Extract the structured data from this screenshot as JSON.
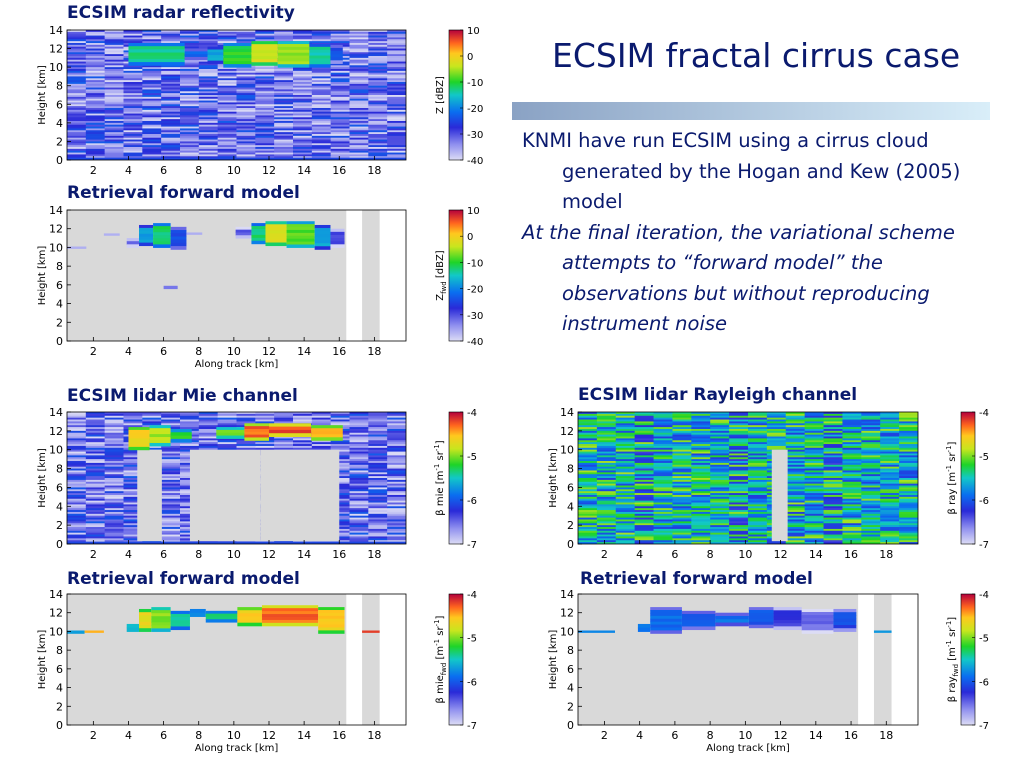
{
  "slide": {
    "title": "ECSIM fractal cirrus case",
    "bullets": [
      "KNMI have run ECSIM using a cirrus cloud generated by the Hogan and Kew (2005) model",
      "At the final iteration, the variational scheme attempts to “forward model” the observations but without reproducing instrument noise"
    ]
  },
  "colors": {
    "text_navy": "#0a1a6e",
    "missing_gray": "#d9d9d9",
    "rule_start": "#8aa2c4",
    "rule_end": "#d9eef9"
  },
  "chart_data": [
    {
      "type": "heatmap",
      "title": "ECSIM radar reflectivity",
      "xlabel": "",
      "ylabel": "Height [km]",
      "xlim": [
        0.5,
        19.8
      ],
      "ylim": [
        0,
        14
      ],
      "xticks": [
        2,
        4,
        6,
        8,
        10,
        12,
        14,
        16,
        18
      ],
      "yticks": [
        0,
        2,
        4,
        6,
        8,
        10,
        12,
        14
      ],
      "colorbar": {
        "label": "Z [dBZ]",
        "range": [
          -40,
          10
        ],
        "ticks": [
          10,
          0,
          -10,
          -20,
          -30,
          -40
        ]
      },
      "background": "noise",
      "cloud": [
        {
          "x": [
            4.0,
            7.2
          ],
          "y": [
            10.2,
            12.6
          ],
          "value": -13
        },
        {
          "x": [
            7.2,
            8.5
          ],
          "y": [
            10.8,
            12.0
          ],
          "value": -22
        },
        {
          "x": [
            8.5,
            9.4
          ],
          "y": [
            10.4,
            12.2
          ],
          "value": -18
        },
        {
          "x": [
            9.4,
            11.0
          ],
          "y": [
            10.0,
            12.6
          ],
          "value": -10
        },
        {
          "x": [
            11.0,
            12.5
          ],
          "y": [
            10.2,
            12.8
          ],
          "value": -3
        },
        {
          "x": [
            12.5,
            14.3
          ],
          "y": [
            10.0,
            12.8
          ],
          "value": -6
        },
        {
          "x": [
            14.3,
            15.5
          ],
          "y": [
            10.0,
            12.5
          ],
          "value": -14
        },
        {
          "x": [
            15.5,
            16.2
          ],
          "y": [
            10.4,
            12.4
          ],
          "value": -24
        }
      ]
    },
    {
      "type": "heatmap",
      "title": "Retrieval forward model",
      "xlabel": "Along track [km]",
      "ylabel": "Height [km]",
      "xlim": [
        0.5,
        19.8
      ],
      "ylim": [
        0,
        14
      ],
      "xticks": [
        2,
        4,
        6,
        8,
        10,
        12,
        14,
        16,
        18
      ],
      "yticks": [
        0,
        2,
        4,
        6,
        8,
        10,
        12,
        14
      ],
      "colorbar": {
        "label": "Z",
        "label_sub": "fwd",
        "label_unit": " [dBZ]",
        "range": [
          -40,
          10
        ],
        "ticks": [
          10,
          0,
          -10,
          -20,
          -30,
          -40
        ]
      },
      "background": "gray",
      "missing": [
        [
          16.4,
          17.3
        ],
        [
          18.3,
          19.8
        ]
      ],
      "cloud": [
        {
          "x": [
            0.5,
            1.6
          ],
          "y": [
            9.9,
            10.1
          ],
          "value": -35
        },
        {
          "x": [
            2.6,
            3.5
          ],
          "y": [
            11.3,
            11.5
          ],
          "value": -36
        },
        {
          "x": [
            3.9,
            4.6
          ],
          "y": [
            10.0,
            11.0
          ],
          "value": -30
        },
        {
          "x": [
            4.6,
            5.4
          ],
          "y": [
            10.2,
            12.4
          ],
          "value": -18
        },
        {
          "x": [
            5.4,
            6.4
          ],
          "y": [
            10.0,
            12.6
          ],
          "value": -12
        },
        {
          "x": [
            6.4,
            7.3
          ],
          "y": [
            9.8,
            12.2
          ],
          "value": -24
        },
        {
          "x": [
            7.3,
            8.2
          ],
          "y": [
            11.4,
            11.6
          ],
          "value": -36
        },
        {
          "x": [
            6.0,
            6.8
          ],
          "y": [
            5.6,
            5.9
          ],
          "value": -32
        },
        {
          "x": [
            10.1,
            11.0
          ],
          "y": [
            11.0,
            12.2
          ],
          "value": -30
        },
        {
          "x": [
            11.0,
            11.8
          ],
          "y": [
            10.4,
            12.6
          ],
          "value": -12
        },
        {
          "x": [
            11.8,
            13.0
          ],
          "y": [
            10.2,
            12.8
          ],
          "value": -3
        },
        {
          "x": [
            13.0,
            14.6
          ],
          "y": [
            10.0,
            12.8
          ],
          "value": -8
        },
        {
          "x": [
            14.6,
            15.5
          ],
          "y": [
            9.8,
            12.4
          ],
          "value": -18
        },
        {
          "x": [
            15.5,
            16.3
          ],
          "y": [
            10.0,
            12.0
          ],
          "value": -30
        }
      ]
    },
    {
      "type": "heatmap",
      "title": "ECSIM lidar Mie channel",
      "xlabel": "",
      "ylabel": "Height [km]",
      "xlim": [
        0.5,
        19.8
      ],
      "ylim": [
        0,
        14
      ],
      "xticks": [
        2,
        4,
        6,
        8,
        10,
        12,
        14,
        16,
        18
      ],
      "yticks": [
        0,
        2,
        4,
        6,
        8,
        10,
        12,
        14
      ],
      "colorbar": {
        "label": "β mie [m",
        "label_unit": " sr",
        "range": [
          -7,
          -4
        ],
        "ticks": [
          -4,
          -5,
          -6,
          -7
        ]
      },
      "background": "noise",
      "attenuated": [
        [
          4.5,
          5.9
        ],
        [
          7.5,
          11.5
        ],
        [
          11.5,
          16.0
        ]
      ],
      "cloud": [
        {
          "x": [
            4.0,
            5.2
          ],
          "y": [
            10.0,
            12.4
          ],
          "value": -4.6
        },
        {
          "x": [
            5.2,
            6.4
          ],
          "y": [
            10.4,
            12.6
          ],
          "value": -4.9
        },
        {
          "x": [
            6.4,
            7.6
          ],
          "y": [
            10.8,
            12.2
          ],
          "value": -5.2
        },
        {
          "x": [
            9.0,
            10.6
          ],
          "y": [
            11.2,
            12.4
          ],
          "value": -5.0
        },
        {
          "x": [
            10.6,
            12.0
          ],
          "y": [
            11.0,
            12.8
          ],
          "value": -4.3
        },
        {
          "x": [
            12.0,
            14.4
          ],
          "y": [
            11.4,
            12.8
          ],
          "value": -4.2
        },
        {
          "x": [
            14.4,
            16.2
          ],
          "y": [
            11.0,
            12.6
          ],
          "value": -4.5
        }
      ]
    },
    {
      "type": "heatmap",
      "title": "ECSIM lidar Rayleigh channel",
      "xlabel": "",
      "ylabel": "Height [km]",
      "xlim": [
        0.5,
        19.8
      ],
      "ylim": [
        0,
        14
      ],
      "xticks": [
        2,
        4,
        6,
        8,
        10,
        12,
        14,
        16,
        18
      ],
      "yticks": [
        0,
        2,
        4,
        6,
        8,
        10,
        12,
        14
      ],
      "colorbar": {
        "label": "β ray [m",
        "label_unit": " sr",
        "range": [
          -7,
          -4
        ],
        "ticks": [
          -4,
          -5,
          -6,
          -7
        ]
      },
      "background": "rayleigh",
      "attenuated": [
        [
          11.5,
          12.4
        ]
      ],
      "cloud": []
    },
    {
      "type": "heatmap",
      "title": "Retrieval forward model",
      "xlabel": "Along track [km]",
      "ylabel": "Height [km]",
      "xlim": [
        0.5,
        19.8
      ],
      "ylim": [
        0,
        14
      ],
      "xticks": [
        2,
        4,
        6,
        8,
        10,
        12,
        14,
        16,
        18
      ],
      "yticks": [
        0,
        2,
        4,
        6,
        8,
        10,
        12,
        14
      ],
      "colorbar": {
        "label": "β mie",
        "label_sub": "fwd",
        "label_unit": " [m",
        "label_unit2": " sr",
        "range": [
          -7,
          -4
        ],
        "ticks": [
          -4,
          -5,
          -6,
          -7
        ]
      },
      "background": "gray",
      "missing": [
        [
          16.4,
          17.3
        ],
        [
          18.3,
          19.8
        ]
      ],
      "cloud": [
        {
          "x": [
            0.5,
            1.5
          ],
          "y": [
            9.8,
            10.1
          ],
          "value": -5.6
        },
        {
          "x": [
            1.5,
            2.6
          ],
          "y": [
            9.9,
            10.1
          ],
          "value": -4.5
        },
        {
          "x": [
            3.9,
            4.6
          ],
          "y": [
            10.0,
            10.8
          ],
          "value": -5.6
        },
        {
          "x": [
            4.6,
            5.3
          ],
          "y": [
            10.0,
            12.4
          ],
          "value": -4.7
        },
        {
          "x": [
            5.3,
            6.4
          ],
          "y": [
            10.0,
            12.6
          ],
          "value": -5.0
        },
        {
          "x": [
            6.4,
            7.5
          ],
          "y": [
            10.2,
            12.2
          ],
          "value": -5.4
        },
        {
          "x": [
            7.5,
            8.4
          ],
          "y": [
            11.6,
            12.4
          ],
          "value": -5.8
        },
        {
          "x": [
            8.4,
            10.2
          ],
          "y": [
            11.0,
            12.2
          ],
          "value": -5.3
        },
        {
          "x": [
            10.2,
            11.6
          ],
          "y": [
            10.6,
            12.6
          ],
          "value": -4.6
        },
        {
          "x": [
            11.6,
            14.8
          ],
          "y": [
            10.6,
            12.8
          ],
          "value": -4.3
        },
        {
          "x": [
            14.8,
            16.3
          ],
          "y": [
            9.8,
            12.6
          ],
          "value": -4.6
        },
        {
          "x": [
            17.3,
            18.3
          ],
          "y": [
            9.9,
            10.1
          ],
          "value": -4.2
        }
      ]
    },
    {
      "type": "heatmap",
      "title": "Retrieval forward model",
      "xlabel": "Along track [km]",
      "ylabel": "Height [km]",
      "xlim": [
        0.5,
        19.8
      ],
      "ylim": [
        0,
        14
      ],
      "xticks": [
        2,
        4,
        6,
        8,
        10,
        12,
        14,
        16,
        18
      ],
      "yticks": [
        0,
        2,
        4,
        6,
        8,
        10,
        12,
        14
      ],
      "colorbar": {
        "label": "β ray",
        "label_sub": "fwd",
        "label_unit": " [m",
        "label_unit2": " sr",
        "range": [
          -7,
          -4
        ],
        "ticks": [
          -4,
          -5,
          -6,
          -7
        ]
      },
      "background": "gray",
      "missing": [
        [
          16.4,
          17.3
        ],
        [
          18.3,
          19.8
        ]
      ],
      "cloud": [
        {
          "x": [
            0.5,
            2.6
          ],
          "y": [
            9.9,
            10.1
          ],
          "value": -5.7
        },
        {
          "x": [
            3.9,
            4.6
          ],
          "y": [
            10.0,
            10.8
          ],
          "value": -5.8
        },
        {
          "x": [
            4.6,
            6.4
          ],
          "y": [
            9.8,
            12.6
          ],
          "value": -5.9
        },
        {
          "x": [
            6.4,
            8.3
          ],
          "y": [
            10.2,
            12.2
          ],
          "value": -6.0
        },
        {
          "x": [
            8.3,
            10.2
          ],
          "y": [
            10.6,
            12.0
          ],
          "value": -5.9
        },
        {
          "x": [
            10.2,
            11.6
          ],
          "y": [
            10.4,
            12.6
          ],
          "value": -6.0
        },
        {
          "x": [
            11.6,
            13.2
          ],
          "y": [
            10.2,
            12.6
          ],
          "value": -6.3
        },
        {
          "x": [
            13.2,
            15.0
          ],
          "y": [
            9.8,
            12.4
          ],
          "value": -6.5
        },
        {
          "x": [
            15.0,
            16.3
          ],
          "y": [
            10.0,
            12.4
          ],
          "value": -6.1
        },
        {
          "x": [
            17.3,
            18.3
          ],
          "y": [
            9.9,
            10.1
          ],
          "value": -5.7
        }
      ]
    }
  ]
}
